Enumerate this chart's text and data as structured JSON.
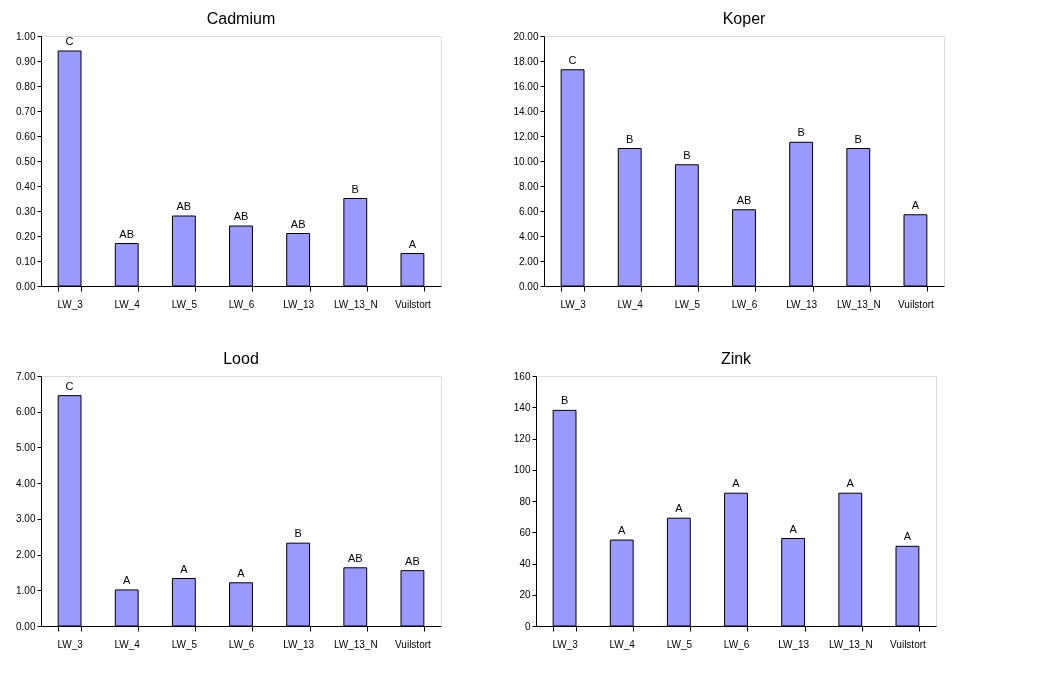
{
  "chart_data": [
    {
      "type": "bar",
      "title": "Cadmium",
      "categories": [
        "LW_3",
        "LW_4",
        "LW_5",
        "LW_6",
        "LW_13",
        "LW_13_N",
        "Vuilstort"
      ],
      "color": "#9999ff",
      "values": [
        0.94,
        0.17,
        0.28,
        0.24,
        0.21,
        0.35,
        0.13
      ],
      "value_labels": [
        "C",
        "AB",
        "AB",
        "AB",
        "AB",
        "B",
        "A"
      ],
      "ylim": [
        0,
        1
      ],
      "yticks": [
        {
          "value": 0,
          "label": "0.00"
        },
        {
          "value": 0.1,
          "label": "0.10"
        },
        {
          "value": 0.2,
          "label": "0.20"
        },
        {
          "value": 0.3,
          "label": "0.30"
        },
        {
          "value": 0.4,
          "label": "0.40"
        },
        {
          "value": 0.5,
          "label": "0.50"
        },
        {
          "value": 0.6,
          "label": "0.60"
        },
        {
          "value": 0.7,
          "label": "0.70"
        },
        {
          "value": 0.8,
          "label": "0.80"
        },
        {
          "value": 0.9,
          "label": "0.90"
        },
        {
          "value": 1,
          "label": "1.00"
        }
      ]
    },
    {
      "type": "bar",
      "title": "Koper",
      "categories": [
        "LW_3",
        "LW_4",
        "LW_5",
        "LW_6",
        "LW_13",
        "LW_13_N",
        "Vuilstort"
      ],
      "color": "#9999ff",
      "values": [
        17.3,
        11.0,
        9.7,
        6.1,
        11.5,
        11.0,
        5.7
      ],
      "value_labels": [
        "C",
        "B",
        "B",
        "AB",
        "B",
        "B",
        "A"
      ],
      "ylim": [
        0,
        20
      ],
      "yticks": [
        {
          "value": 0,
          "label": "0.00"
        },
        {
          "value": 2,
          "label": "2.00"
        },
        {
          "value": 4,
          "label": "4.00"
        },
        {
          "value": 6,
          "label": "6.00"
        },
        {
          "value": 8,
          "label": "8.00"
        },
        {
          "value": 10,
          "label": "10.00"
        },
        {
          "value": 12,
          "label": "12.00"
        },
        {
          "value": 14,
          "label": "14.00"
        },
        {
          "value": 16,
          "label": "16.00"
        },
        {
          "value": 18,
          "label": "18.00"
        },
        {
          "value": 20,
          "label": "20.00"
        }
      ]
    },
    {
      "type": "bar",
      "title": "Lood",
      "categories": [
        "LW_3",
        "LW_4",
        "LW_5",
        "LW_6",
        "LW_13",
        "LW_13_N",
        "Vuilstort"
      ],
      "color": "#9999ff",
      "values": [
        6.45,
        1.01,
        1.33,
        1.21,
        2.32,
        1.63,
        1.55
      ],
      "value_labels": [
        "C",
        "A",
        "A",
        "A",
        "B",
        "AB",
        "AB"
      ],
      "ylim": [
        0,
        7
      ],
      "yticks": [
        {
          "value": 0,
          "label": "0.00"
        },
        {
          "value": 1,
          "label": "1.00"
        },
        {
          "value": 2,
          "label": "2.00"
        },
        {
          "value": 3,
          "label": "3.00"
        },
        {
          "value": 4,
          "label": "4.00"
        },
        {
          "value": 5,
          "label": "5.00"
        },
        {
          "value": 6,
          "label": "6.00"
        },
        {
          "value": 7,
          "label": "7.00"
        }
      ]
    },
    {
      "type": "bar",
      "title": "Zink",
      "categories": [
        "LW_3",
        "LW_4",
        "LW_5",
        "LW_6",
        "LW_13",
        "LW_13_N",
        "Vuilstort"
      ],
      "color": "#9999ff",
      "values": [
        138,
        55,
        69,
        85,
        56,
        85,
        51
      ],
      "value_labels": [
        "B",
        "A",
        "A",
        "A",
        "A",
        "A",
        "A"
      ],
      "ylim": [
        0,
        160
      ],
      "yticks": [
        0,
        20,
        40,
        60,
        80,
        100,
        120,
        140,
        160
      ]
    }
  ]
}
